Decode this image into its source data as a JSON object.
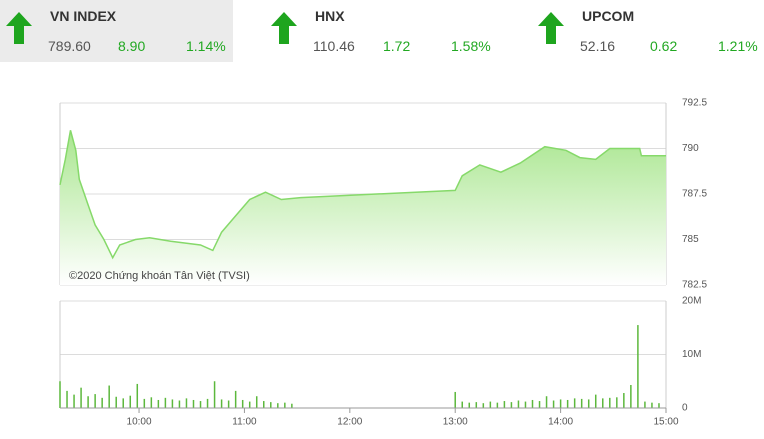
{
  "tickers": [
    {
      "name": "VN INDEX",
      "price": "789.60",
      "change": "8.90",
      "pct": "1.14%"
    },
    {
      "name": "HNX",
      "price": "110.46",
      "change": "1.72",
      "pct": "1.58%"
    },
    {
      "name": "UPCOM",
      "price": "52.16",
      "change": "0.62",
      "pct": "1.21%"
    }
  ],
  "chart_data": [
    {
      "type": "area",
      "annotation": "©2020 Chứng khoán Tân Việt (TVSI)",
      "color": "#86d96a",
      "fill": "#a9e68f",
      "x": [
        555,
        558,
        561,
        564,
        566,
        571,
        575,
        580,
        585,
        589,
        598,
        606,
        618,
        635,
        642,
        647,
        655,
        663,
        672,
        681,
        692,
        780,
        784,
        794,
        806,
        817,
        831,
        843,
        851,
        860,
        868,
        885,
        886,
        900
      ],
      "values": [
        788.0,
        789.4,
        791.0,
        789.9,
        788.3,
        786.9,
        785.8,
        785.0,
        784.0,
        784.7,
        785.0,
        785.1,
        784.9,
        784.7,
        784.4,
        785.4,
        786.3,
        787.2,
        787.6,
        787.2,
        787.3,
        787.7,
        788.5,
        789.1,
        788.7,
        789.2,
        790.1,
        789.9,
        789.5,
        789.4,
        790.0,
        790.0,
        789.6,
        789.6
      ],
      "xlim": [
        555,
        900
      ],
      "ylim": [
        782.5,
        792.5
      ],
      "yticks": [
        782.5,
        785,
        787.5,
        790,
        792.5
      ],
      "grid": true
    },
    {
      "type": "bar",
      "color": "#5cb83c",
      "x": [
        555,
        559,
        563,
        567,
        571,
        575,
        579,
        583,
        587,
        591,
        595,
        599,
        603,
        607,
        611,
        615,
        619,
        623,
        627,
        631,
        635,
        639,
        643,
        647,
        651,
        655,
        659,
        663,
        667,
        671,
        675,
        679,
        683,
        687,
        780,
        784,
        788,
        792,
        796,
        800,
        804,
        808,
        812,
        816,
        820,
        824,
        828,
        832,
        836,
        840,
        844,
        848,
        852,
        856,
        860,
        864,
        868,
        872,
        876,
        880,
        884,
        888,
        892,
        896
      ],
      "values": [
        5000000,
        3200000,
        2500000,
        3800000,
        2200000,
        2600000,
        1900000,
        4200000,
        2100000,
        1800000,
        2300000,
        4500000,
        1700000,
        2000000,
        1500000,
        1900000,
        1600000,
        1400000,
        1800000,
        1500000,
        1300000,
        1700000,
        5000000,
        1600000,
        1400000,
        3200000,
        1500000,
        1200000,
        2200000,
        1300000,
        1100000,
        900000,
        1000000,
        800000,
        3000000,
        1200000,
        1000000,
        1100000,
        900000,
        1200000,
        1000000,
        1300000,
        1100000,
        1400000,
        1200000,
        1500000,
        1300000,
        2200000,
        1400000,
        1600000,
        1500000,
        1800000,
        1700000,
        1600000,
        2500000,
        1800000,
        1900000,
        2000000,
        2800000,
        4300000,
        15500000,
        1200000,
        1000000,
        900000
      ],
      "xlim": [
        555,
        900
      ],
      "xticks": [
        {
          "value": 600,
          "label": "10:00"
        },
        {
          "value": 660,
          "label": "11:00"
        },
        {
          "value": 720,
          "label": "12:00"
        },
        {
          "value": 780,
          "label": "13:00"
        },
        {
          "value": 840,
          "label": "14:00"
        },
        {
          "value": 900,
          "label": "15:00"
        }
      ],
      "ylim": [
        0,
        20000000
      ],
      "yticks": [
        {
          "value": 0,
          "label": "0"
        },
        {
          "value": 10000000,
          "label": "10M"
        },
        {
          "value": 20000000,
          "label": "20M"
        }
      ],
      "grid": true
    }
  ]
}
